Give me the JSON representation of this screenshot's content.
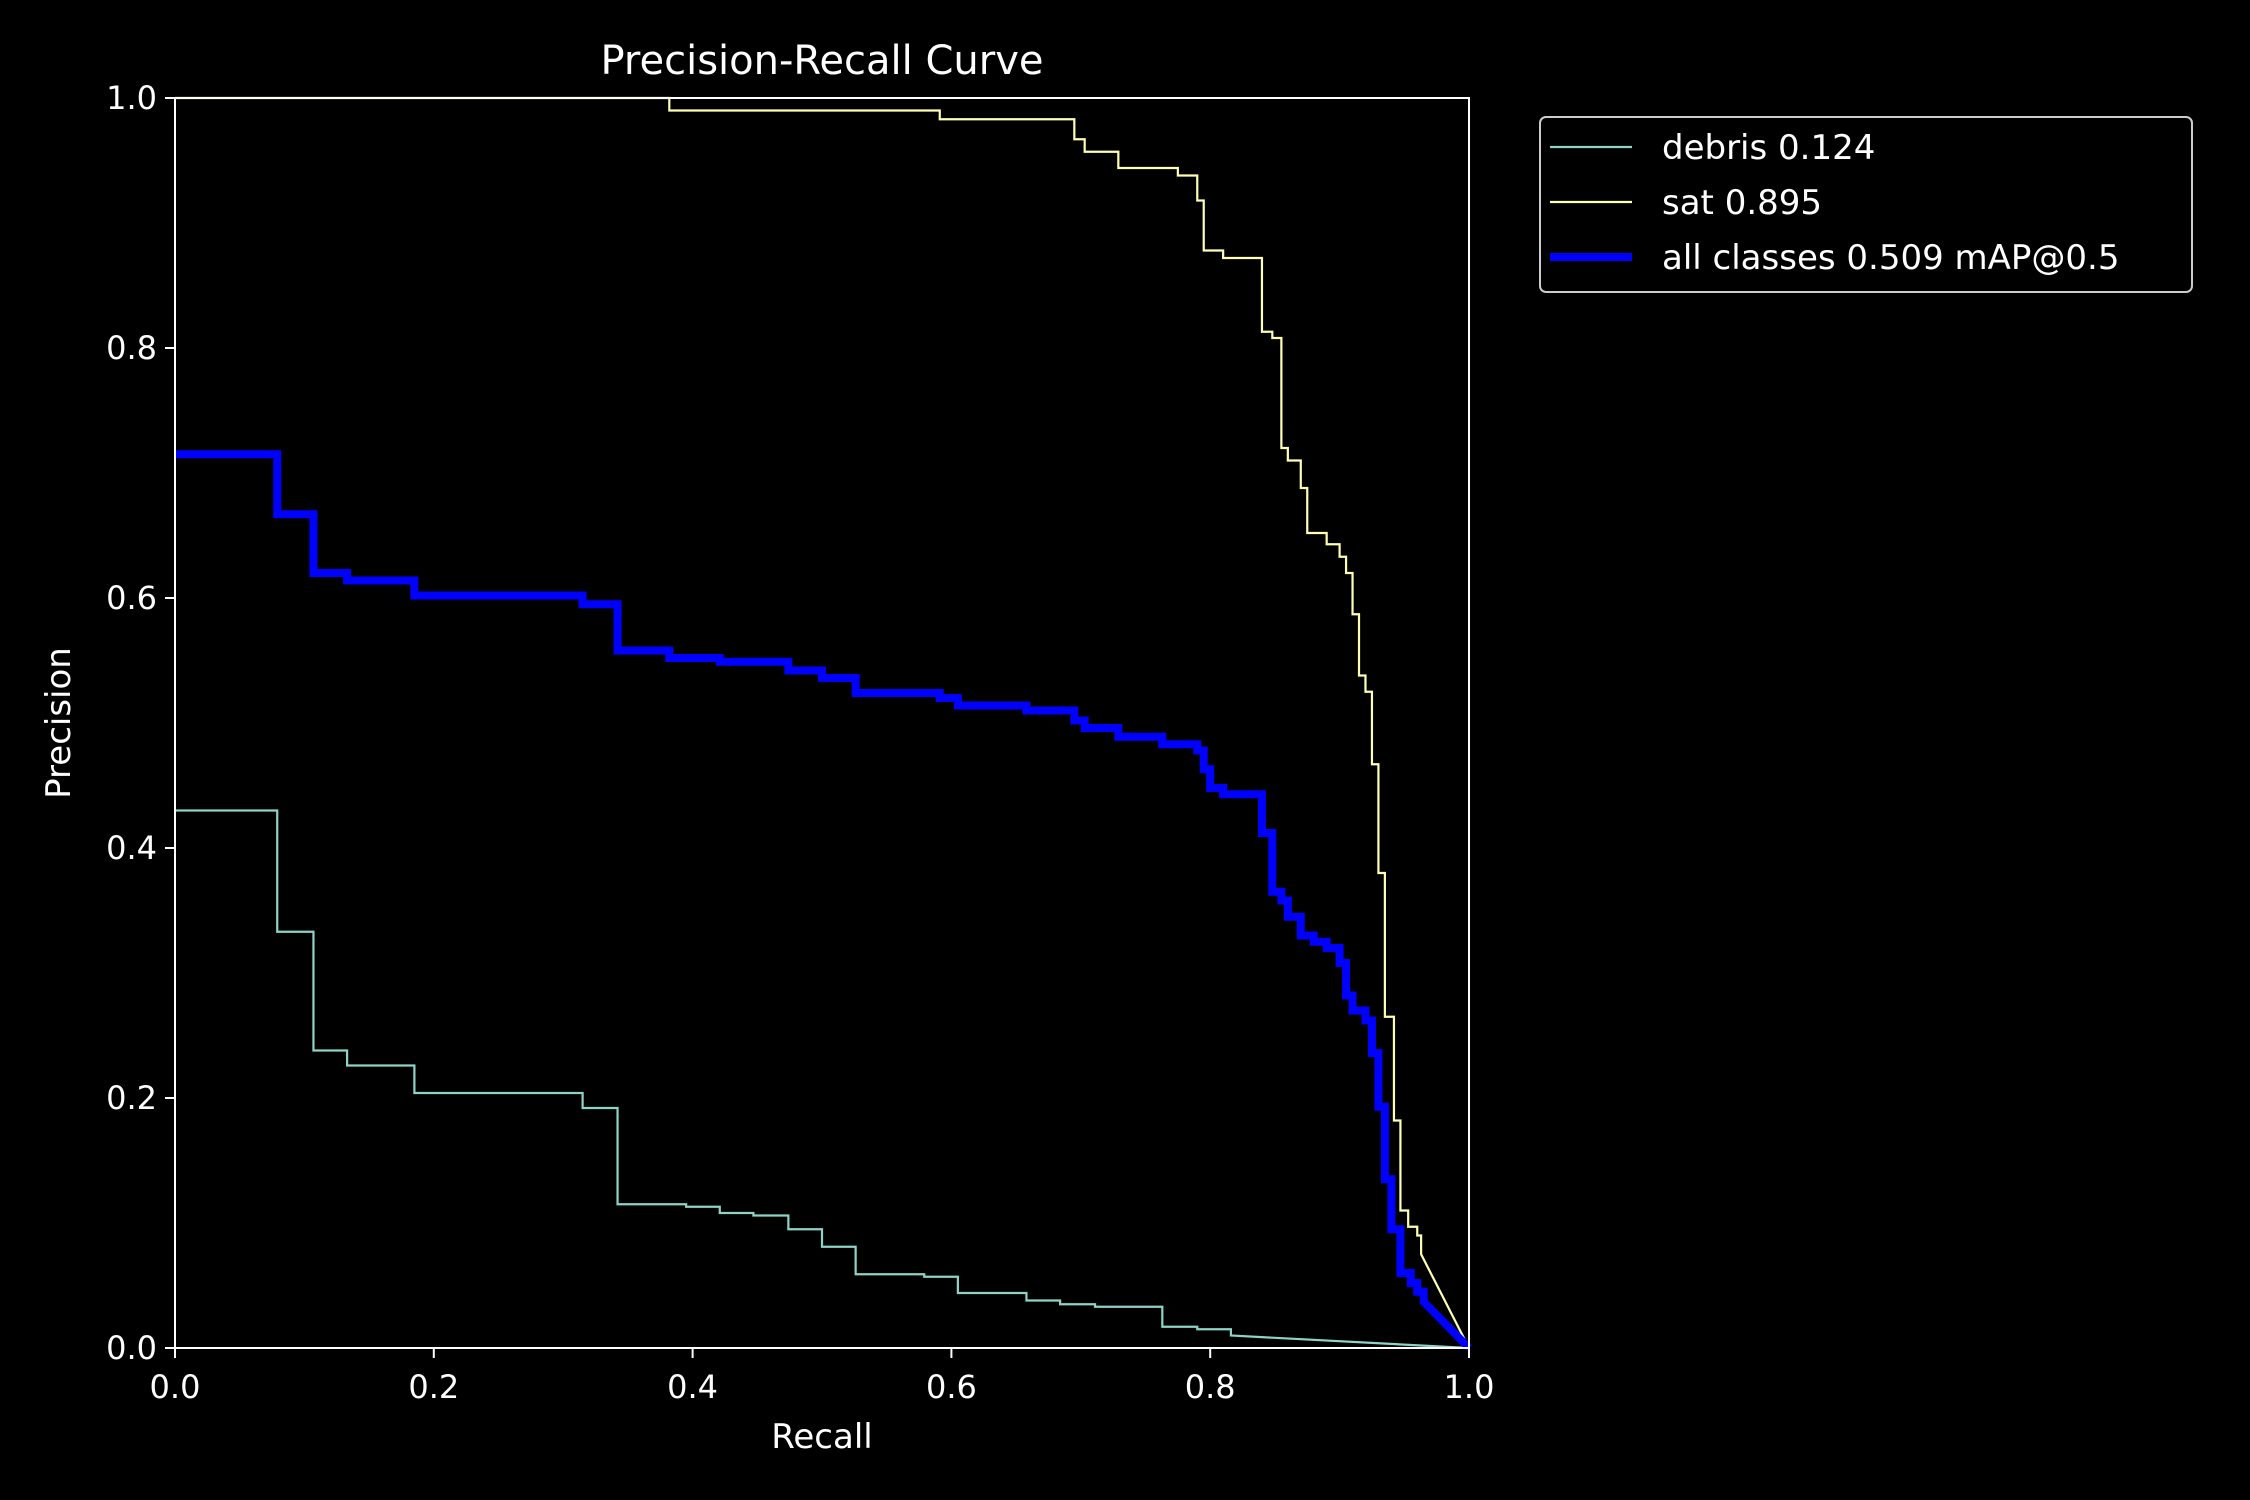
{
  "chart_data": {
    "type": "line",
    "title": "Precision-Recall Curve",
    "xlabel": "Recall",
    "ylabel": "Precision",
    "xlim": [
      0,
      1
    ],
    "ylim": [
      0,
      1
    ],
    "x_ticks": [
      "0.0",
      "0.2",
      "0.4",
      "0.6",
      "0.8",
      "1.0"
    ],
    "y_ticks": [
      "0.0",
      "0.2",
      "0.4",
      "0.6",
      "0.8",
      "1.0"
    ],
    "grid": false,
    "legend_placement": "outside-top-right",
    "background": "#000000",
    "series": [
      {
        "name": "debris 0.124",
        "color": "#8dd3c7",
        "step": true,
        "points": [
          [
            0.0,
            0.43
          ],
          [
            0.079,
            0.43
          ],
          [
            0.079,
            0.333
          ],
          [
            0.107,
            0.333
          ],
          [
            0.107,
            0.238
          ],
          [
            0.133,
            0.238
          ],
          [
            0.133,
            0.226
          ],
          [
            0.185,
            0.226
          ],
          [
            0.185,
            0.204
          ],
          [
            0.315,
            0.204
          ],
          [
            0.315,
            0.192
          ],
          [
            0.342,
            0.192
          ],
          [
            0.342,
            0.115
          ],
          [
            0.395,
            0.115
          ],
          [
            0.395,
            0.113
          ],
          [
            0.421,
            0.113
          ],
          [
            0.421,
            0.108
          ],
          [
            0.447,
            0.108
          ],
          [
            0.447,
            0.106
          ],
          [
            0.474,
            0.106
          ],
          [
            0.474,
            0.095
          ],
          [
            0.5,
            0.095
          ],
          [
            0.5,
            0.081
          ],
          [
            0.526,
            0.081
          ],
          [
            0.526,
            0.059
          ],
          [
            0.579,
            0.059
          ],
          [
            0.579,
            0.057
          ],
          [
            0.605,
            0.057
          ],
          [
            0.605,
            0.044
          ],
          [
            0.658,
            0.044
          ],
          [
            0.658,
            0.038
          ],
          [
            0.684,
            0.038
          ],
          [
            0.684,
            0.035
          ],
          [
            0.711,
            0.035
          ],
          [
            0.711,
            0.033
          ],
          [
            0.763,
            0.033
          ],
          [
            0.763,
            0.017
          ],
          [
            0.79,
            0.017
          ],
          [
            0.79,
            0.015
          ],
          [
            0.816,
            0.015
          ],
          [
            0.816,
            0.01
          ],
          [
            1.0,
            0.0
          ]
        ]
      },
      {
        "name": "sat 0.895",
        "color": "#ffffb3",
        "step": true,
        "points": [
          [
            0.0,
            1.0
          ],
          [
            0.382,
            1.0
          ],
          [
            0.382,
            0.99
          ],
          [
            0.591,
            0.99
          ],
          [
            0.591,
            0.983
          ],
          [
            0.695,
            0.983
          ],
          [
            0.695,
            0.967
          ],
          [
            0.703,
            0.967
          ],
          [
            0.703,
            0.957
          ],
          [
            0.729,
            0.957
          ],
          [
            0.729,
            0.944
          ],
          [
            0.775,
            0.944
          ],
          [
            0.775,
            0.938
          ],
          [
            0.79,
            0.938
          ],
          [
            0.79,
            0.918
          ],
          [
            0.795,
            0.918
          ],
          [
            0.795,
            0.878
          ],
          [
            0.81,
            0.878
          ],
          [
            0.81,
            0.872
          ],
          [
            0.84,
            0.872
          ],
          [
            0.84,
            0.813
          ],
          [
            0.848,
            0.813
          ],
          [
            0.848,
            0.808
          ],
          [
            0.855,
            0.808
          ],
          [
            0.855,
            0.72
          ],
          [
            0.86,
            0.72
          ],
          [
            0.86,
            0.71
          ],
          [
            0.87,
            0.71
          ],
          [
            0.87,
            0.688
          ],
          [
            0.875,
            0.688
          ],
          [
            0.875,
            0.652
          ],
          [
            0.89,
            0.652
          ],
          [
            0.89,
            0.643
          ],
          [
            0.9,
            0.643
          ],
          [
            0.9,
            0.633
          ],
          [
            0.905,
            0.633
          ],
          [
            0.905,
            0.62
          ],
          [
            0.91,
            0.62
          ],
          [
            0.91,
            0.587
          ],
          [
            0.915,
            0.587
          ],
          [
            0.915,
            0.538
          ],
          [
            0.92,
            0.538
          ],
          [
            0.92,
            0.525
          ],
          [
            0.925,
            0.525
          ],
          [
            0.925,
            0.467
          ],
          [
            0.93,
            0.467
          ],
          [
            0.93,
            0.38
          ],
          [
            0.935,
            0.38
          ],
          [
            0.935,
            0.265
          ],
          [
            0.942,
            0.265
          ],
          [
            0.942,
            0.182
          ],
          [
            0.947,
            0.182
          ],
          [
            0.947,
            0.11
          ],
          [
            0.953,
            0.11
          ],
          [
            0.953,
            0.097
          ],
          [
            0.96,
            0.097
          ],
          [
            0.96,
            0.09
          ],
          [
            0.963,
            0.09
          ],
          [
            0.963,
            0.075
          ],
          [
            1.0,
            0.0
          ]
        ]
      },
      {
        "name": "all classes 0.509 mAP@0.5",
        "color": "#0000ff",
        "step": true,
        "bold": true,
        "points": [
          [
            0.0,
            0.715
          ],
          [
            0.079,
            0.715
          ],
          [
            0.079,
            0.667
          ],
          [
            0.107,
            0.667
          ],
          [
            0.107,
            0.62
          ],
          [
            0.133,
            0.62
          ],
          [
            0.133,
            0.614
          ],
          [
            0.185,
            0.614
          ],
          [
            0.185,
            0.602
          ],
          [
            0.315,
            0.602
          ],
          [
            0.315,
            0.595
          ],
          [
            0.342,
            0.595
          ],
          [
            0.342,
            0.558
          ],
          [
            0.382,
            0.558
          ],
          [
            0.382,
            0.552
          ],
          [
            0.421,
            0.552
          ],
          [
            0.421,
            0.549
          ],
          [
            0.474,
            0.549
          ],
          [
            0.474,
            0.542
          ],
          [
            0.5,
            0.542
          ],
          [
            0.5,
            0.536
          ],
          [
            0.526,
            0.536
          ],
          [
            0.526,
            0.524
          ],
          [
            0.591,
            0.524
          ],
          [
            0.591,
            0.52
          ],
          [
            0.605,
            0.52
          ],
          [
            0.605,
            0.514
          ],
          [
            0.658,
            0.514
          ],
          [
            0.658,
            0.51
          ],
          [
            0.695,
            0.51
          ],
          [
            0.695,
            0.502
          ],
          [
            0.703,
            0.502
          ],
          [
            0.703,
            0.496
          ],
          [
            0.729,
            0.496
          ],
          [
            0.729,
            0.489
          ],
          [
            0.763,
            0.489
          ],
          [
            0.763,
            0.483
          ],
          [
            0.79,
            0.483
          ],
          [
            0.79,
            0.478
          ],
          [
            0.795,
            0.478
          ],
          [
            0.795,
            0.463
          ],
          [
            0.8,
            0.463
          ],
          [
            0.8,
            0.448
          ],
          [
            0.81,
            0.448
          ],
          [
            0.81,
            0.443
          ],
          [
            0.84,
            0.443
          ],
          [
            0.84,
            0.412
          ],
          [
            0.848,
            0.412
          ],
          [
            0.848,
            0.365
          ],
          [
            0.855,
            0.365
          ],
          [
            0.855,
            0.358
          ],
          [
            0.86,
            0.358
          ],
          [
            0.86,
            0.345
          ],
          [
            0.87,
            0.345
          ],
          [
            0.87,
            0.33
          ],
          [
            0.88,
            0.33
          ],
          [
            0.88,
            0.325
          ],
          [
            0.89,
            0.325
          ],
          [
            0.89,
            0.32
          ],
          [
            0.9,
            0.32
          ],
          [
            0.9,
            0.308
          ],
          [
            0.905,
            0.308
          ],
          [
            0.905,
            0.282
          ],
          [
            0.91,
            0.282
          ],
          [
            0.91,
            0.27
          ],
          [
            0.92,
            0.27
          ],
          [
            0.92,
            0.262
          ],
          [
            0.925,
            0.262
          ],
          [
            0.925,
            0.236
          ],
          [
            0.93,
            0.236
          ],
          [
            0.93,
            0.193
          ],
          [
            0.935,
            0.193
          ],
          [
            0.935,
            0.135
          ],
          [
            0.94,
            0.135
          ],
          [
            0.94,
            0.095
          ],
          [
            0.947,
            0.095
          ],
          [
            0.947,
            0.06
          ],
          [
            0.955,
            0.06
          ],
          [
            0.955,
            0.052
          ],
          [
            0.96,
            0.052
          ],
          [
            0.96,
            0.045
          ],
          [
            0.965,
            0.045
          ],
          [
            0.965,
            0.037
          ],
          [
            1.0,
            0.0
          ]
        ]
      }
    ]
  }
}
